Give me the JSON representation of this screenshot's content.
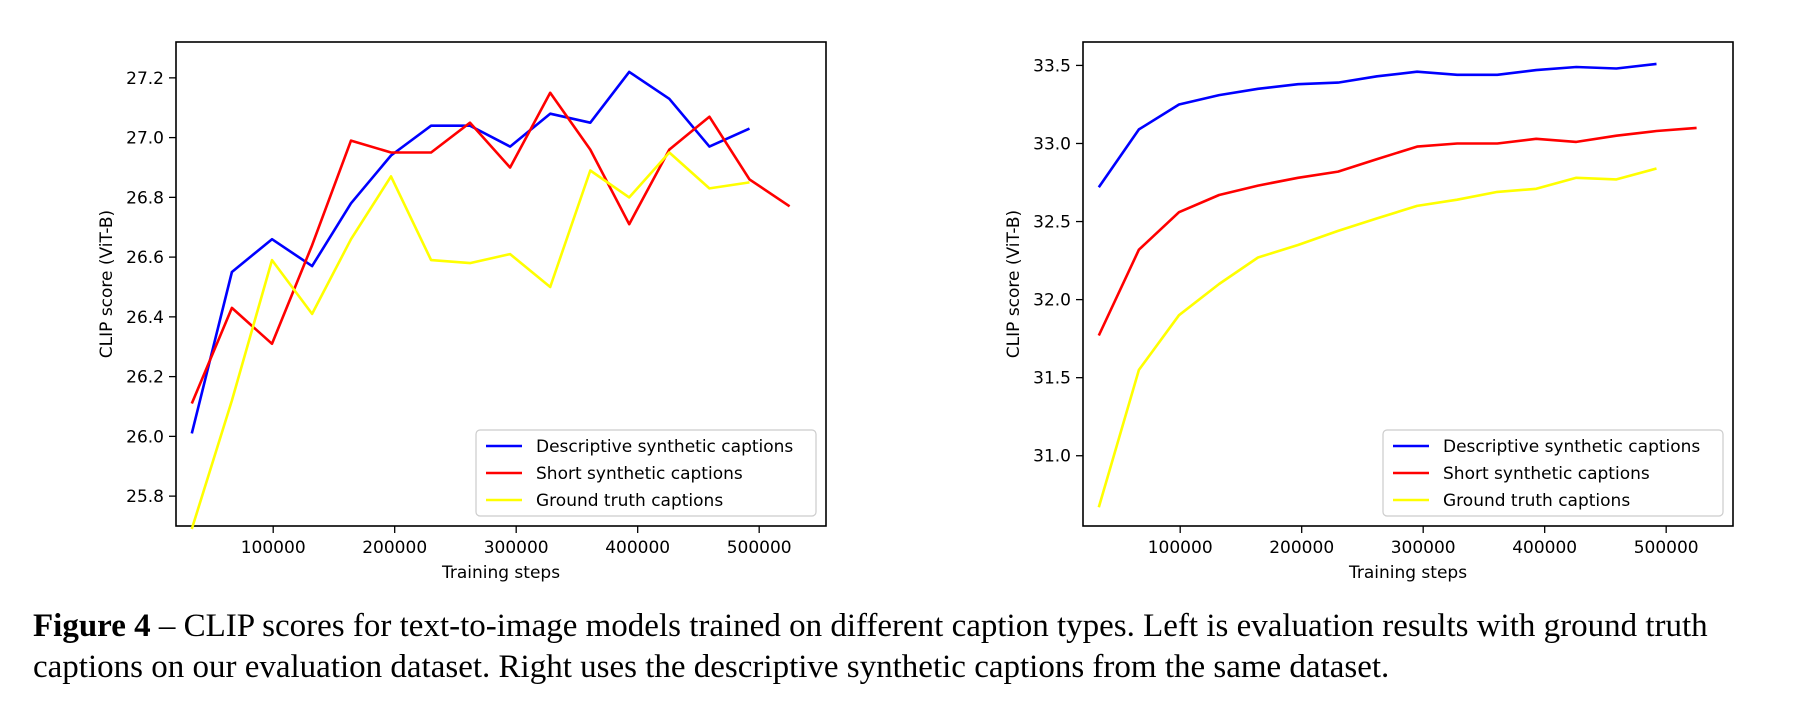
{
  "chart_data": [
    {
      "type": "line",
      "xlabel": "Training steps",
      "ylabel": "CLIP score (ViT-B)",
      "xlim": [
        20000,
        555000
      ],
      "ylim": [
        25.7,
        27.32
      ],
      "xticks": [
        100000,
        200000,
        300000,
        400000,
        500000
      ],
      "yticks": [
        25.8,
        26.0,
        26.2,
        26.4,
        26.6,
        26.8,
        27.0,
        27.2
      ],
      "ytick_decimals": 1,
      "legend_position": "lower-right",
      "grid": false,
      "series": [
        {
          "name": "Descriptive synthetic captions",
          "color": "#0000ff",
          "x": [
            33000,
            66000,
            99000,
            132000,
            164000,
            197000,
            230000,
            262000,
            295000,
            328000,
            361000,
            393000,
            426000,
            459000,
            492000
          ],
          "y": [
            26.01,
            26.55,
            26.66,
            26.57,
            26.78,
            26.94,
            27.04,
            27.04,
            26.97,
            27.08,
            27.05,
            27.22,
            27.13,
            26.97,
            27.03
          ]
        },
        {
          "name": "Short synthetic captions",
          "color": "#ff0000",
          "x": [
            33000,
            66000,
            99000,
            132000,
            164000,
            197000,
            230000,
            262000,
            295000,
            328000,
            361000,
            393000,
            426000,
            459000,
            492000,
            525000
          ],
          "y": [
            26.11,
            26.43,
            26.31,
            26.64,
            26.99,
            26.95,
            26.95,
            27.05,
            26.9,
            27.15,
            26.96,
            26.71,
            26.96,
            27.07,
            26.86,
            26.77
          ]
        },
        {
          "name": "Ground truth captions",
          "color": "#ffff00",
          "x": [
            33000,
            66000,
            99000,
            132000,
            164000,
            197000,
            230000,
            262000,
            295000,
            328000,
            361000,
            393000,
            426000,
            459000,
            492000
          ],
          "y": [
            25.69,
            26.12,
            26.59,
            26.41,
            26.66,
            26.87,
            26.59,
            26.58,
            26.61,
            26.5,
            26.89,
            26.8,
            26.95,
            26.83,
            26.85
          ]
        }
      ]
    },
    {
      "type": "line",
      "xlabel": "Training steps",
      "ylabel": "CLIP score (ViT-B)",
      "xlim": [
        20000,
        555000
      ],
      "ylim": [
        30.55,
        33.65
      ],
      "xticks": [
        100000,
        200000,
        300000,
        400000,
        500000
      ],
      "yticks": [
        31.0,
        31.5,
        32.0,
        32.5,
        33.0,
        33.5
      ],
      "ytick_decimals": 1,
      "legend_position": "lower-right",
      "grid": false,
      "series": [
        {
          "name": "Descriptive synthetic captions",
          "color": "#0000ff",
          "x": [
            33000,
            66000,
            99000,
            132000,
            164000,
            197000,
            230000,
            262000,
            295000,
            328000,
            361000,
            393000,
            426000,
            459000,
            492000
          ],
          "y": [
            32.72,
            33.09,
            33.25,
            33.31,
            33.35,
            33.38,
            33.39,
            33.43,
            33.46,
            33.44,
            33.44,
            33.47,
            33.49,
            33.48,
            33.51
          ]
        },
        {
          "name": "Short synthetic captions",
          "color": "#ff0000",
          "x": [
            33000,
            66000,
            99000,
            132000,
            164000,
            197000,
            230000,
            262000,
            295000,
            328000,
            361000,
            393000,
            426000,
            459000,
            492000,
            525000
          ],
          "y": [
            31.77,
            32.32,
            32.56,
            32.67,
            32.73,
            32.78,
            32.82,
            32.9,
            32.98,
            33.0,
            33.0,
            33.03,
            33.01,
            33.05,
            33.08,
            33.1
          ]
        },
        {
          "name": "Ground truth captions",
          "color": "#ffff00",
          "x": [
            33000,
            66000,
            99000,
            132000,
            164000,
            197000,
            230000,
            262000,
            295000,
            328000,
            361000,
            393000,
            426000,
            459000,
            492000
          ],
          "y": [
            30.67,
            31.55,
            31.9,
            32.1,
            32.27,
            32.35,
            32.44,
            32.52,
            32.6,
            32.64,
            32.69,
            32.71,
            32.78,
            32.77,
            32.84
          ]
        }
      ]
    }
  ],
  "caption": {
    "label": "Figure 4",
    "text": " – CLIP scores for text-to-image models trained on different caption types. Left is evaluation results with ground truth captions on our evaluation dataset. Right uses the descriptive synthetic captions from the same dataset."
  }
}
